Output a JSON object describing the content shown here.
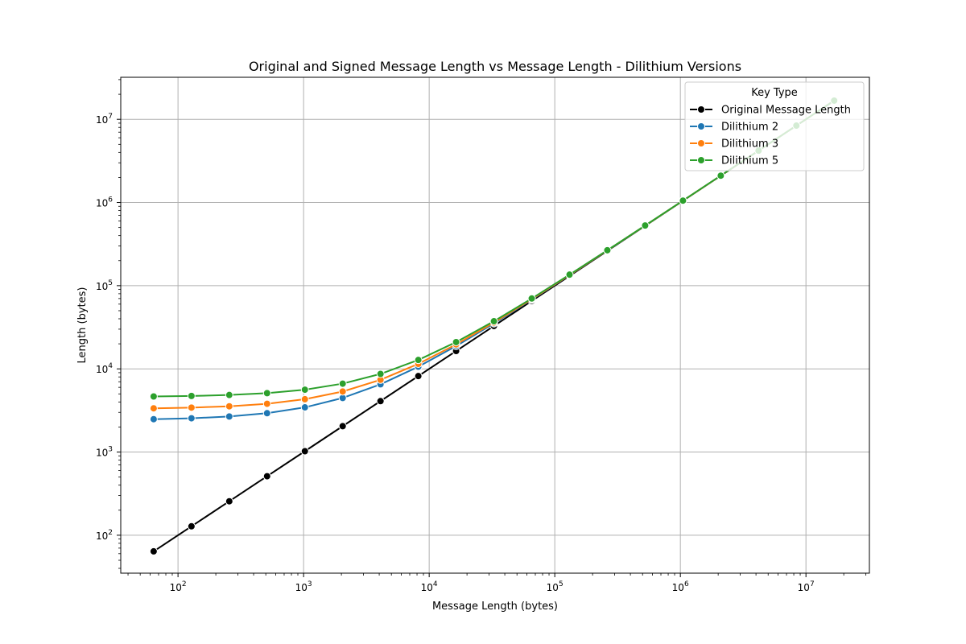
{
  "chart_data": {
    "type": "line",
    "title": "Original and Signed Message Length vs Message Length - Dilithium Versions",
    "xlabel": "Message Length (bytes)",
    "ylabel": "Length (bytes)",
    "xscale": "log",
    "yscale": "log",
    "xlim": [
      35,
      32000000
    ],
    "ylim": [
      35,
      32000000
    ],
    "grid": true,
    "legend": {
      "title": "Key Type",
      "position": "top-right"
    },
    "x": [
      64,
      128,
      256,
      512,
      1024,
      2048,
      4096,
      8192,
      16384,
      32768,
      65536,
      131072,
      262144,
      524288,
      1048576,
      2097152,
      4194304,
      8388608,
      16777216
    ],
    "series": [
      {
        "name": "Original Message Length",
        "color": "#000000",
        "values": [
          64,
          128,
          256,
          512,
          1024,
          2048,
          4096,
          8192,
          16384,
          32768,
          65536,
          131072,
          262144,
          524288,
          1048576,
          2097152,
          4194304,
          8388608,
          16777216
        ]
      },
      {
        "name": "Dilithium 2",
        "color": "#1f77b4",
        "values": [
          2484,
          2548,
          2676,
          2932,
          3444,
          4468,
          6516,
          10612,
          18804,
          35188,
          67956,
          133492,
          264564,
          526708,
          1050996,
          2099572,
          4196724,
          8391028,
          16779636
        ]
      },
      {
        "name": "Dilithium 3",
        "color": "#ff7f0e",
        "values": [
          3357,
          3421,
          3549,
          3805,
          4317,
          5341,
          7389,
          11485,
          19677,
          36061,
          68829,
          134365,
          265437,
          527581,
          1051869,
          2100445,
          4197597,
          8391901,
          16780509
        ]
      },
      {
        "name": "Dilithium 5",
        "color": "#2ca02c",
        "values": [
          4659,
          4723,
          4851,
          5107,
          5619,
          6643,
          8691,
          12787,
          20979,
          37363,
          70131,
          135667,
          266739,
          528883,
          1053171,
          2101747,
          4198899,
          8393203,
          16781811
        ]
      }
    ],
    "xticks": [
      {
        "value": 100,
        "mantissa": "10",
        "exp": "2"
      },
      {
        "value": 1000,
        "mantissa": "10",
        "exp": "3"
      },
      {
        "value": 10000,
        "mantissa": "10",
        "exp": "4"
      },
      {
        "value": 100000,
        "mantissa": "10",
        "exp": "5"
      },
      {
        "value": 1000000,
        "mantissa": "10",
        "exp": "6"
      },
      {
        "value": 10000000,
        "mantissa": "10",
        "exp": "7"
      }
    ],
    "yticks": [
      {
        "value": 100,
        "mantissa": "10",
        "exp": "2"
      },
      {
        "value": 1000,
        "mantissa": "10",
        "exp": "3"
      },
      {
        "value": 10000,
        "mantissa": "10",
        "exp": "4"
      },
      {
        "value": 100000,
        "mantissa": "10",
        "exp": "5"
      },
      {
        "value": 1000000,
        "mantissa": "10",
        "exp": "6"
      },
      {
        "value": 10000000,
        "mantissa": "10",
        "exp": "7"
      }
    ]
  }
}
